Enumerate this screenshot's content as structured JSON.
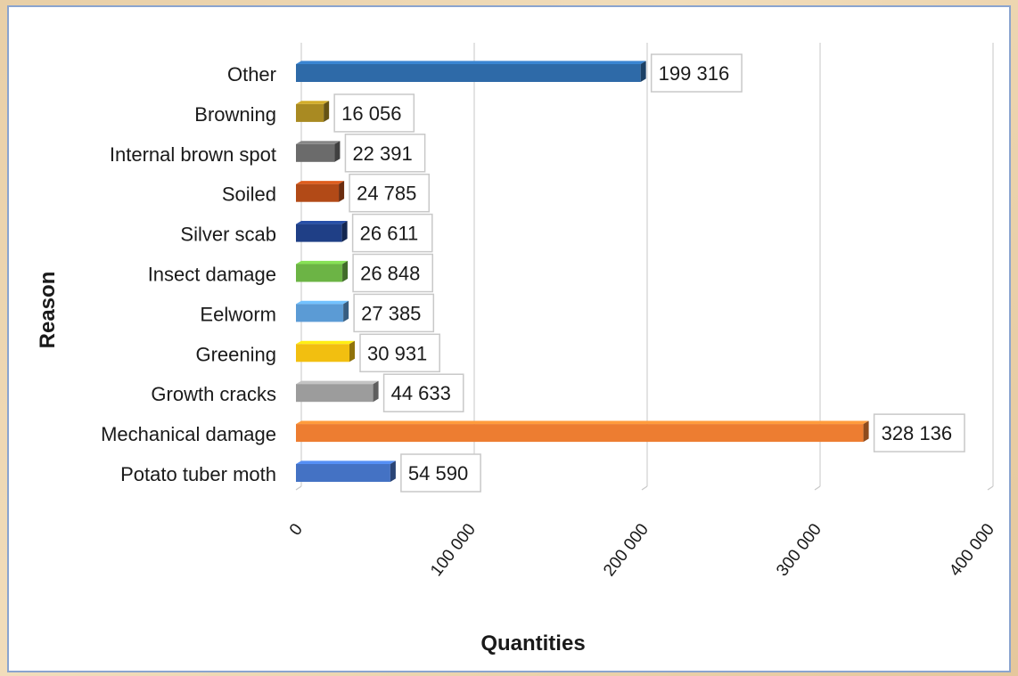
{
  "chart_data": {
    "type": "bar",
    "orientation": "horizontal",
    "categories": [
      "Other",
      "Browning",
      "Internal brown spot",
      "Soiled",
      "Silver scab",
      "Insect damage",
      "Eelworm",
      "Greening",
      "Growth cracks",
      "Mechanical damage",
      "Potato tuber moth"
    ],
    "values": [
      199316,
      16056,
      22391,
      24785,
      26611,
      26848,
      27385,
      30931,
      44633,
      328136,
      54590
    ],
    "value_labels": [
      "199 316",
      "16 056",
      "22 391",
      "24 785",
      "26 611",
      "26 848",
      "27 385",
      "30 931",
      "44 633",
      "328 136",
      "54 590"
    ],
    "colors": [
      "#2e6aa8",
      "#a98a22",
      "#6b6b6b",
      "#b24a17",
      "#1f3f86",
      "#6cb445",
      "#5b9bd5",
      "#f2bf10",
      "#9c9c9c",
      "#ed7d31",
      "#4472c4"
    ],
    "xlabel": "Quantities",
    "ylabel": "Reason",
    "xlim": [
      0,
      400000
    ],
    "x_ticks": [
      0,
      100000,
      200000,
      300000,
      400000
    ],
    "x_tick_labels": [
      "0",
      "100 000",
      "200 000",
      "300 000",
      "400 000"
    ],
    "grid": true,
    "legend": "none",
    "style": "3d"
  }
}
